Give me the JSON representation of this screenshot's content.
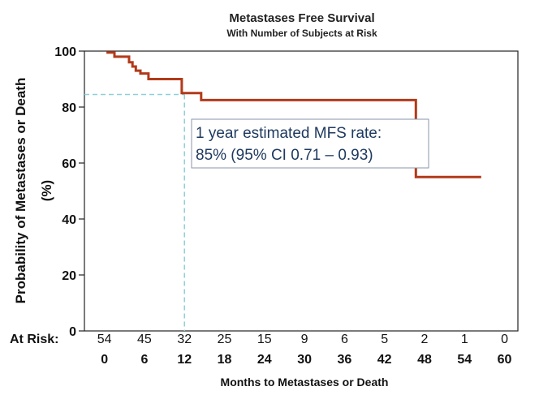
{
  "chart_data": {
    "type": "line",
    "title": "Metastases Free Survival",
    "subtitle": "With Number of Subjects at Risk",
    "xlabel": "Months to Metastases or Death",
    "ylabel_line1": "Probability of Metastases or Death",
    "ylabel_line2": "(%)",
    "xlim": [
      -3,
      62
    ],
    "ylim": [
      0,
      100
    ],
    "xticks": [
      0,
      6,
      12,
      18,
      24,
      30,
      36,
      42,
      48,
      54,
      60
    ],
    "yticks": [
      0,
      20,
      40,
      60,
      80,
      100
    ],
    "at_risk_label": "At Risk:",
    "at_risk": [
      54,
      45,
      32,
      25,
      15,
      9,
      6,
      5,
      2,
      1,
      0
    ],
    "series": [
      {
        "color": "#b23a1a",
        "x": [
          0.3,
          1.5,
          1.5,
          3.7,
          3.7,
          4.2,
          4.2,
          4.7,
          4.7,
          5.4,
          5.4,
          6.6,
          6.6,
          11.6,
          11.6,
          14.5,
          14.5,
          46.7,
          46.7,
          56.5
        ],
        "y": [
          99.5,
          99.5,
          98,
          98,
          96,
          96,
          94.5,
          94.5,
          93,
          93,
          92,
          92,
          90,
          90,
          85,
          85,
          82.5,
          82.5,
          55,
          55
        ]
      }
    ],
    "reference": {
      "x": 12,
      "y": 84.5,
      "color": "#8fcfd8"
    },
    "annotation": {
      "line1": "1 year estimated MFS rate:",
      "line2": "85% (95% CI 0.71 – 0.93)"
    },
    "grid": false,
    "legend": "none"
  }
}
